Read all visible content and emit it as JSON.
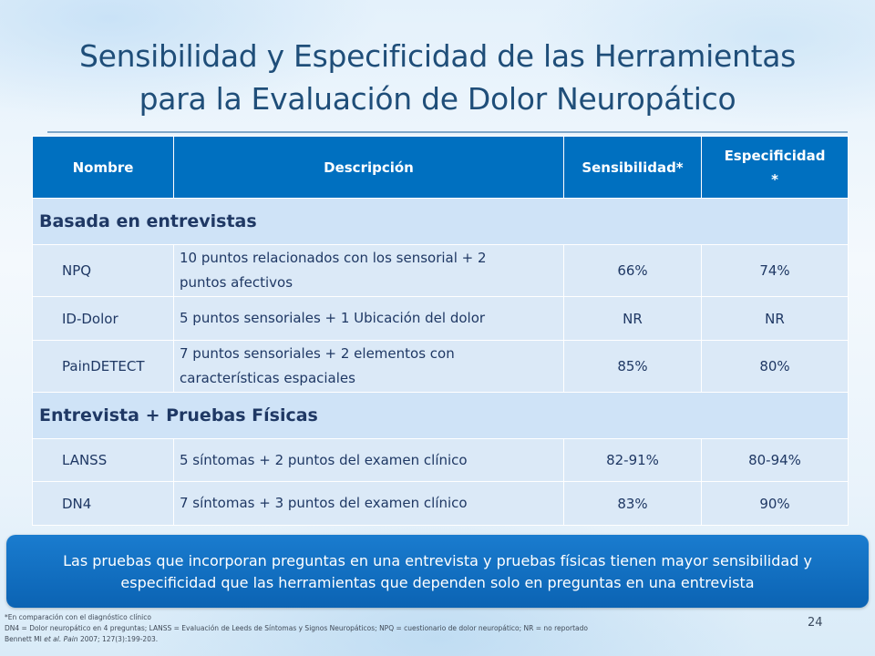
{
  "title": {
    "line1": "Sensibilidad y Especificidad de las Herramientas",
    "line2": "para la Evaluación de Dolor Neuropático"
  },
  "table": {
    "headers": {
      "name": "Nombre",
      "description": "Descripción",
      "sensitivity": "Sensibilidad*",
      "specificity_line1": "Especificidad",
      "specificity_line2": "*"
    },
    "sections": [
      {
        "label": "Basada en entrevistas",
        "rows": [
          {
            "name": "NPQ",
            "desc_line1": "10 puntos relacionados con los sensorial + 2",
            "desc_line2": "puntos afectivos",
            "sensitivity": "66%",
            "specificity": "74%"
          },
          {
            "name": "ID-Dolor",
            "desc_line1": "5 puntos sensoriales + 1 Ubicación del dolor",
            "desc_line2": "",
            "sensitivity": "NR",
            "specificity": "NR"
          },
          {
            "name": "PainDETECT",
            "desc_line1": "7 puntos sensoriales + 2 elementos con",
            "desc_line2": "características espaciales",
            "sensitivity": "85%",
            "specificity": "80%"
          }
        ]
      },
      {
        "label": "Entrevista + Pruebas Físicas",
        "rows": [
          {
            "name": "LANSS",
            "desc_line1": "5 síntomas + 2 puntos del examen clínico",
            "desc_line2": "",
            "sensitivity": "82-91%",
            "specificity": "80-94%"
          },
          {
            "name": "DN4",
            "desc_line1": "7 síntomas + 3 puntos del examen clínico",
            "desc_line2": "",
            "sensitivity": "83%",
            "specificity": "90%"
          }
        ]
      }
    ]
  },
  "callout": {
    "line1": "Las pruebas que incorporan preguntas en una entrevista y pruebas físicas tienen mayor sensibilidad y",
    "line2": "especificidad que las herramientas que dependen solo en preguntas en una entrevista"
  },
  "footnotes": {
    "line1": "*En comparación con el diagnóstico clínico",
    "line2": "DN4 = Dolor neuropático en 4 preguntas; LANSS = Evaluación de Leeds de Síntomas y Signos Neuropáticos; NPQ = cuestionario de dolor neuropático; NR = no reportado",
    "citation_author": "Bennett MI ",
    "citation_etal": "et al. Pain",
    "citation_rest": " 2007; 127(3):199-203."
  },
  "page_number": "24",
  "colors": {
    "title": "#1f4e79",
    "header_bg": "#0070c0",
    "section_bg": "#cfe3f7",
    "row_bg": "#dbe9f7",
    "callout_bg": "#0b63b3"
  }
}
